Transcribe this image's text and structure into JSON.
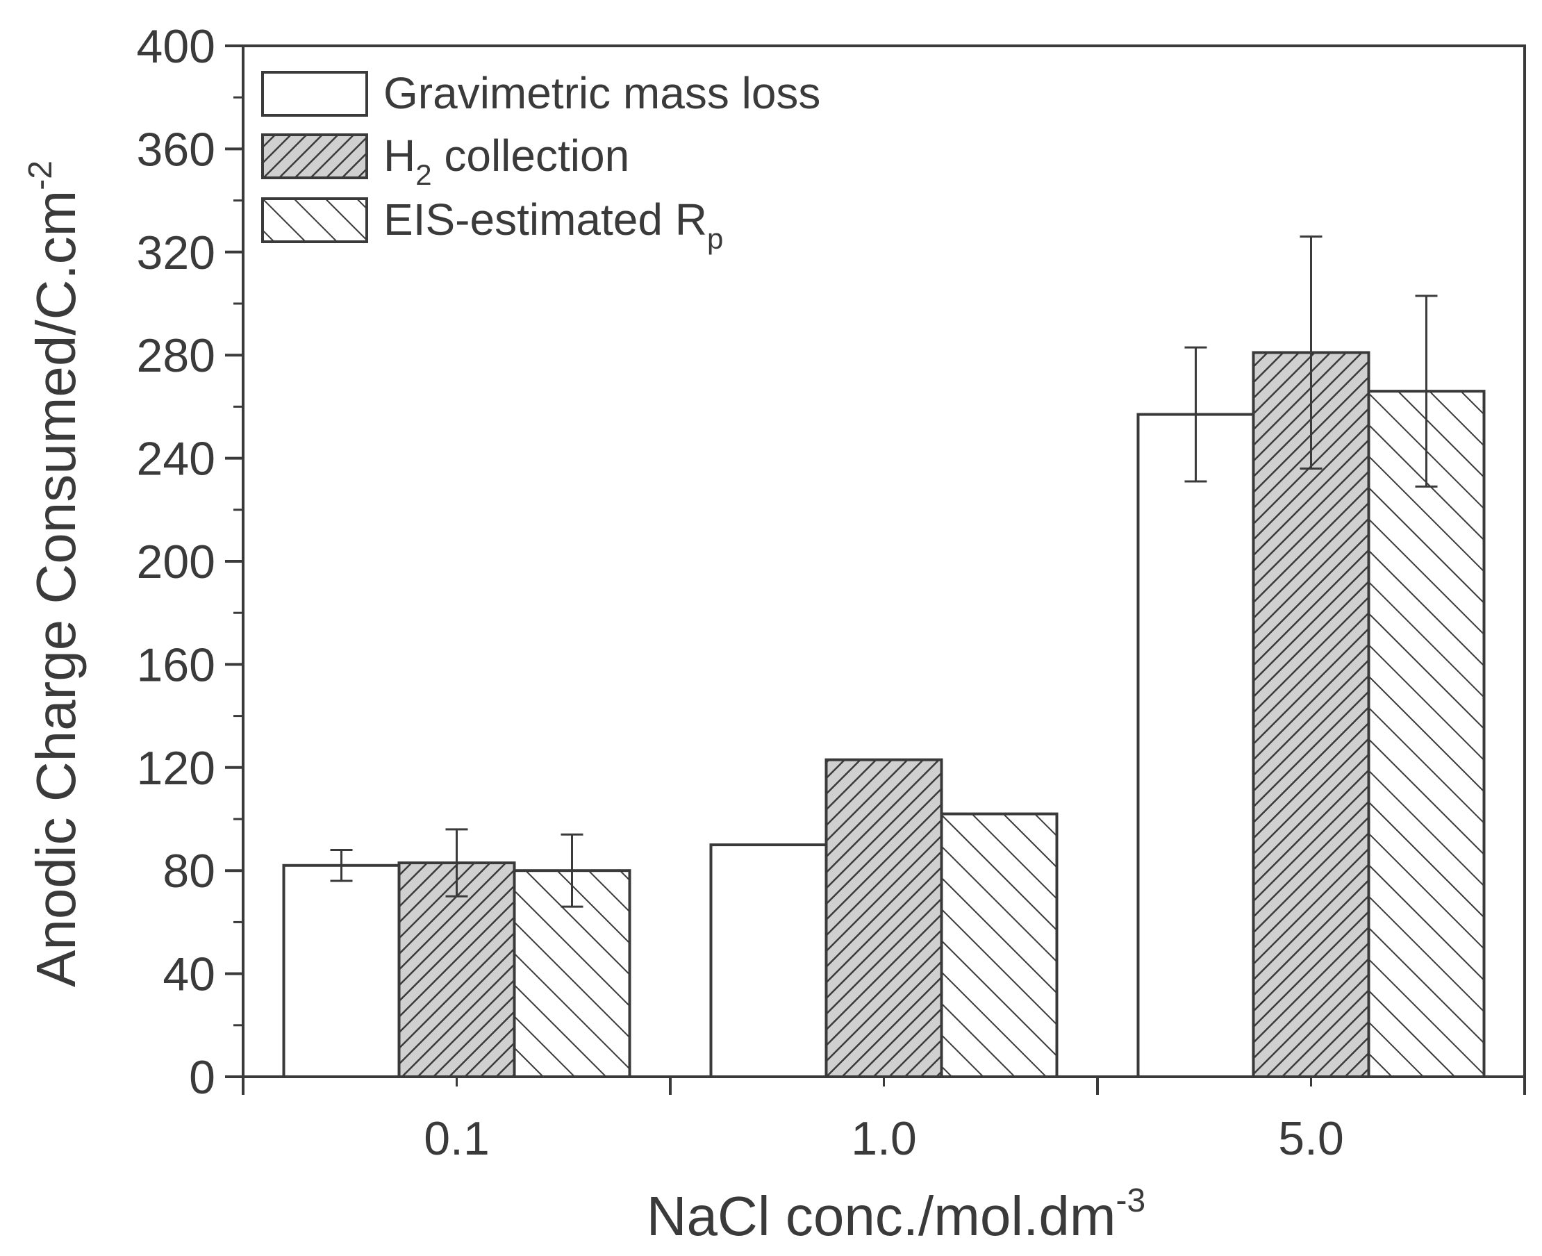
{
  "chart_data": {
    "type": "bar",
    "title": "",
    "xlabel": {
      "base": "NaCl conc./mol.dm",
      "sup": "-3"
    },
    "ylabel": {
      "base": "Anodic Charge Consumed/C.cm",
      "sup": "-2"
    },
    "categories": [
      "0.1",
      "1.0",
      "5.0"
    ],
    "ylim": [
      0,
      400
    ],
    "yticks": [
      0,
      40,
      80,
      120,
      160,
      200,
      240,
      280,
      320,
      360,
      400
    ],
    "grid": false,
    "legend_position": "top-left",
    "series": [
      {
        "name": "Gravimetric mass loss",
        "legend": {
          "base": "Gravimetric mass loss",
          "sub": "",
          "tail": ""
        },
        "pattern": "none",
        "values": [
          82,
          90,
          257
        ],
        "errors": [
          6,
          null,
          26
        ]
      },
      {
        "name": "H2 collection",
        "legend": {
          "base": "H",
          "sub": "2",
          "tail": " collection"
        },
        "pattern": "dense-hatch",
        "values": [
          83,
          123,
          281
        ],
        "errors": [
          13,
          null,
          45
        ]
      },
      {
        "name": "EIS-estimated Rp",
        "legend": {
          "base": "EIS-estimated R",
          "sub": "p",
          "tail": ""
        },
        "pattern": "sparse-hatch",
        "values": [
          80,
          102,
          266
        ],
        "errors": [
          14,
          null,
          37
        ]
      }
    ],
    "colors": {
      "axis": "#3a3a3a",
      "bar_fill": "#ffffff",
      "hatch": "#3a3a3a",
      "hatch_bg": "#d0d0d0"
    }
  }
}
